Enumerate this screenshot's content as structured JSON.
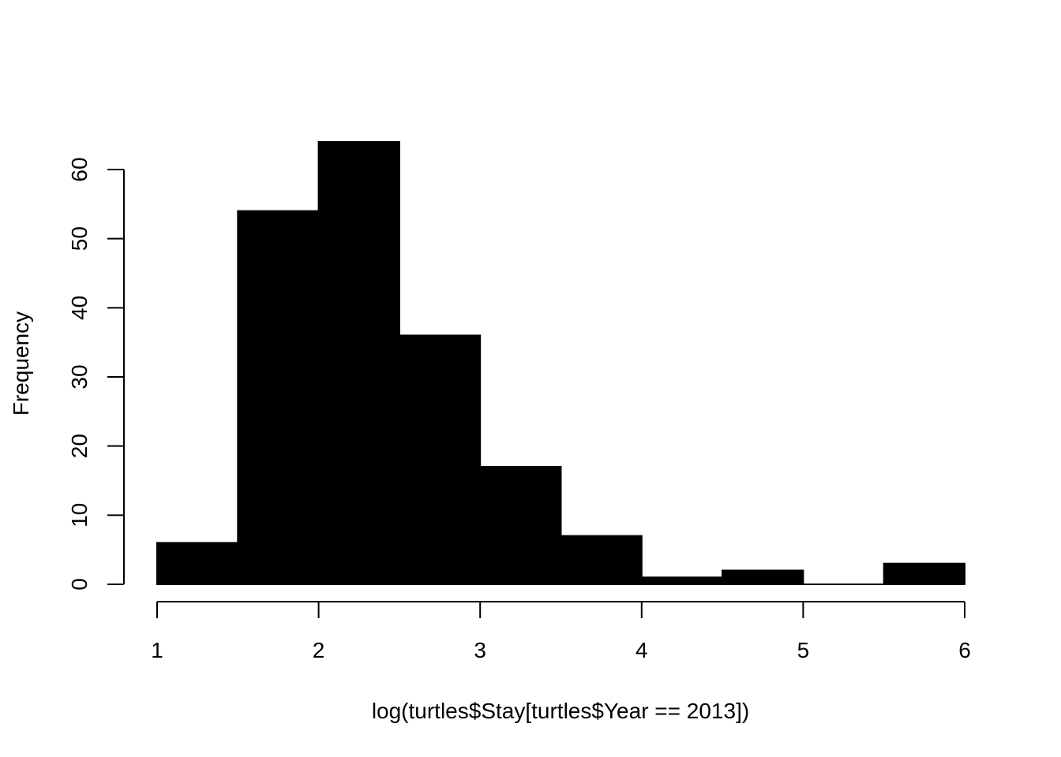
{
  "chart_data": {
    "type": "bar",
    "xlabel": "log(turtles$Stay[turtles$Year == 2013])",
    "ylabel": "Frequency",
    "bins": [
      {
        "x0": 1.0,
        "x1": 1.5,
        "count": 6
      },
      {
        "x0": 1.5,
        "x1": 2.0,
        "count": 54
      },
      {
        "x0": 2.0,
        "x1": 2.5,
        "count": 64
      },
      {
        "x0": 2.5,
        "x1": 3.0,
        "count": 36
      },
      {
        "x0": 3.0,
        "x1": 3.5,
        "count": 17
      },
      {
        "x0": 3.5,
        "x1": 4.0,
        "count": 7
      },
      {
        "x0": 4.0,
        "x1": 4.5,
        "count": 1
      },
      {
        "x0": 4.5,
        "x1": 5.0,
        "count": 2
      },
      {
        "x0": 5.0,
        "x1": 5.5,
        "count": 0
      },
      {
        "x0": 5.5,
        "x1": 6.0,
        "count": 3
      }
    ],
    "xticks": [
      1,
      2,
      3,
      4,
      5,
      6
    ],
    "yticks": [
      0,
      10,
      20,
      30,
      40,
      50,
      60
    ],
    "xlim": [
      1,
      6
    ],
    "ylim": [
      0,
      60
    ],
    "bar_color": "#000000",
    "grid": false
  }
}
